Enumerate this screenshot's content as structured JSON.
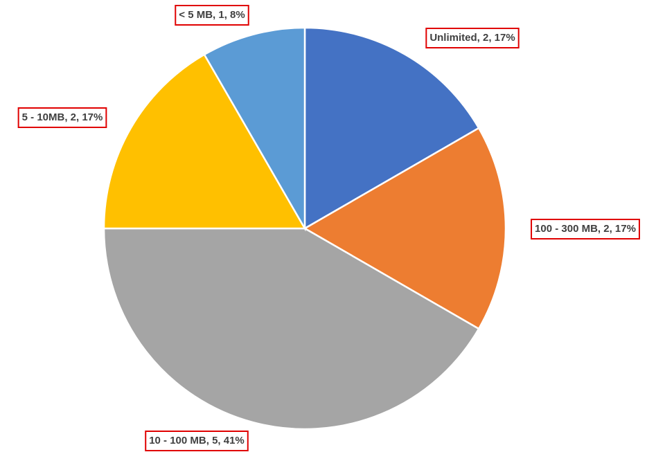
{
  "chart_data": {
    "type": "pie",
    "values": [
      2,
      2,
      5,
      2,
      1
    ],
    "value_labels": [
      "Unlimited, 2, 17%",
      "100 - 300 MB, 2, 17%",
      "10 - 100 MB, 5, 41%",
      "5 - 10MB, 2, 17%",
      "< 5 MB, 1, 8%"
    ],
    "colors": [
      "#4472c4",
      "#ed7d31",
      "#a5a5a5",
      "#ffc000",
      "#5b9bd5"
    ]
  }
}
